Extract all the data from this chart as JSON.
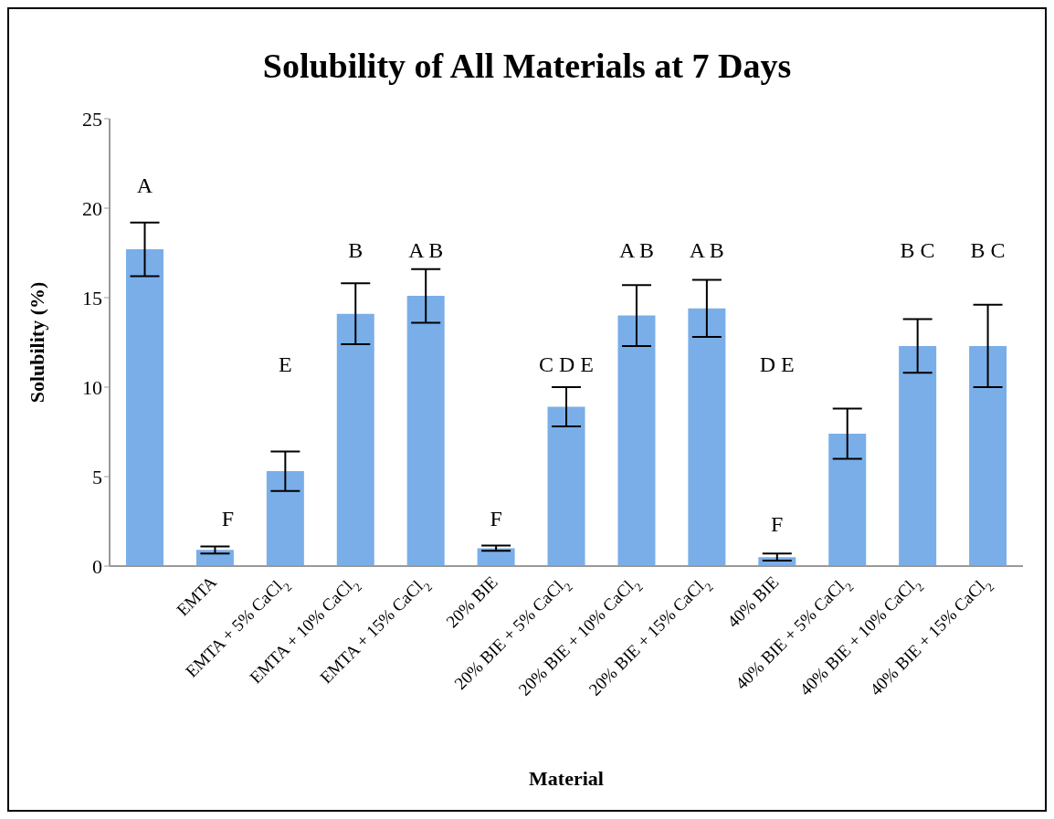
{
  "chart_data": {
    "type": "bar",
    "title": "Solubility of All Materials at 7 Days",
    "xlabel": "Material",
    "ylabel": "Solubility (%)",
    "categories": [
      null,
      "EMTA",
      "EMTA + 5% CaCl$_{2}$",
      "EMTA + 10% CaCl$_{2}$",
      "EMTA + 15% CaCl$_{2}$",
      "20% BIE",
      "20% BIE + 5% CaCl$_{2}$",
      "20% BIE + 10% CaCl$_{2}$",
      "20% BIE + 15% CaCl$_{2}$",
      "40% BIE",
      "40% BIE + 5% CaCl$_{2}$",
      "40% BIE + 10% CaCl$_{2}$",
      "40% BIE + 15% CaCl$_{2}$"
    ],
    "values": [
      17.7,
      0.9,
      5.3,
      14.1,
      15.1,
      1.0,
      8.9,
      14.0,
      14.4,
      0.5,
      7.4,
      12.3,
      12.3
    ],
    "errors": [
      1.5,
      0.2,
      1.1,
      1.7,
      1.5,
      0.15,
      1.1,
      1.7,
      1.6,
      0.2,
      1.4,
      1.5,
      2.3
    ],
    "color": "#7aaee8",
    "ylim": [
      0,
      25
    ],
    "yticks": [
      0,
      5,
      10,
      15,
      20,
      25
    ],
    "grid": false,
    "legend": false,
    "annotations": [
      "A",
      "F",
      "E",
      "B",
      "A B",
      "F",
      "C D E",
      "A B",
      "A B",
      "D E",
      "F",
      "B C",
      "B C"
    ]
  }
}
